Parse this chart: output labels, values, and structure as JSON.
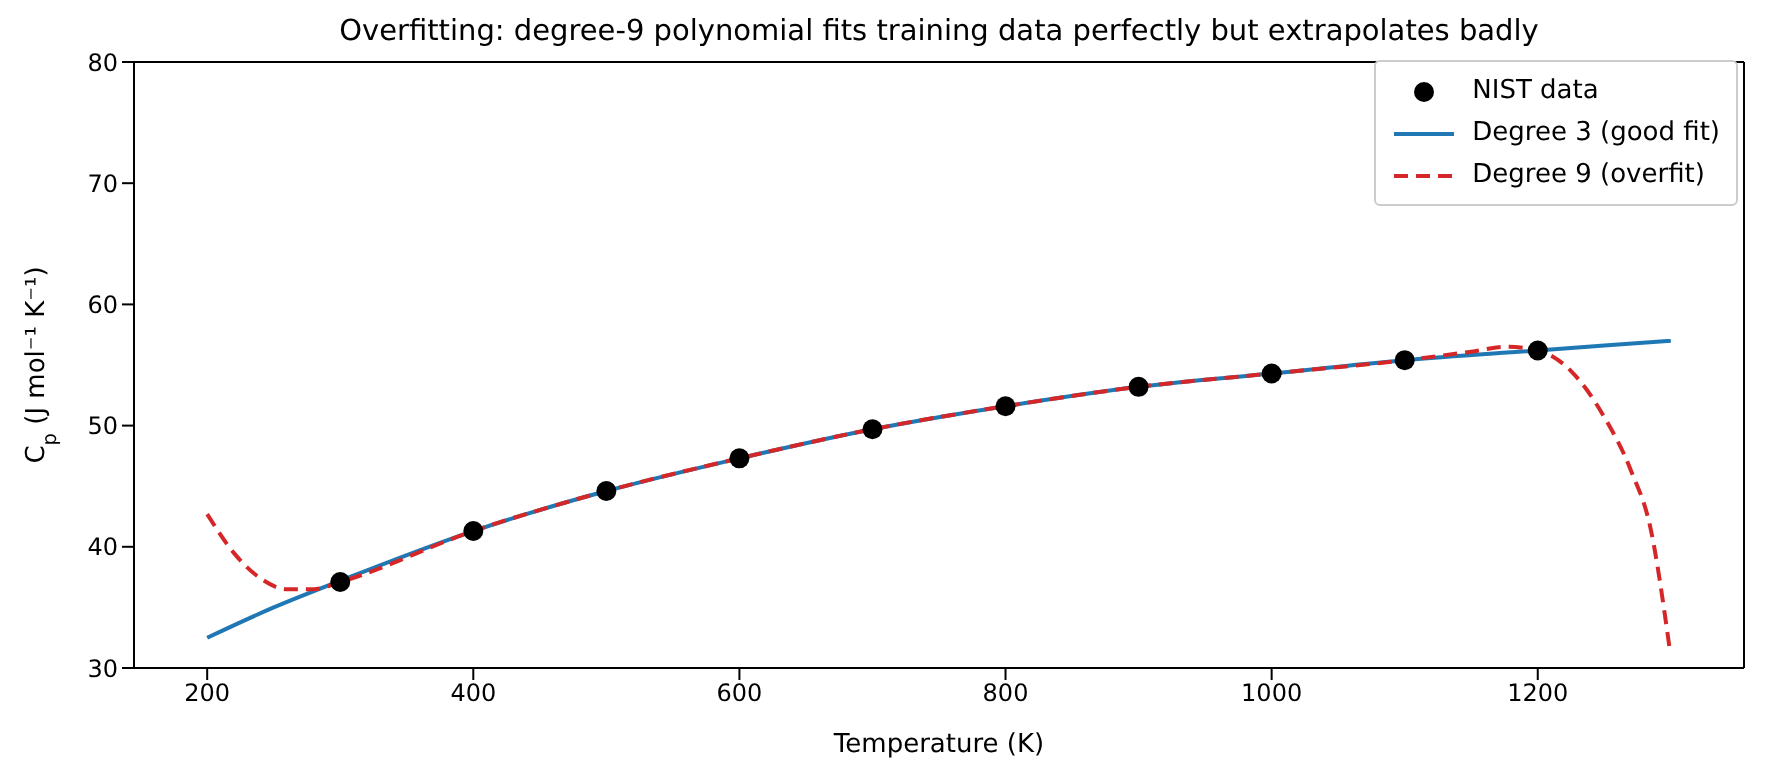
{
  "chart_data": {
    "type": "line",
    "title": "Overfitting: degree-9 polynomial fits training data perfectly but extrapolates badly",
    "xlabel": "Temperature (K)",
    "ylabel": "C$_{p}$ (J mol⁻¹ K⁻¹)",
    "xlim": [
      145,
      1355
    ],
    "xticks": [
      200,
      400,
      600,
      800,
      1000,
      1200
    ],
    "ylim": [
      30,
      80
    ],
    "yticks": [
      30,
      40,
      50,
      60,
      70,
      80
    ],
    "legend": "top right",
    "series": [
      {
        "name": "NIST data",
        "type": "scatter",
        "color": "#000000",
        "marker": "circle",
        "x": [
          300,
          400,
          500,
          600,
          700,
          800,
          900,
          1000,
          1100,
          1200
        ],
        "values": [
          37.1,
          41.3,
          44.6,
          47.3,
          49.7,
          51.6,
          53.2,
          54.3,
          55.4,
          56.2
        ]
      },
      {
        "name": "Degree 3 (good fit)",
        "color": "#1f77b4",
        "line_style": "solid",
        "x": [
          200,
          250,
          300,
          400,
          500,
          600,
          700,
          800,
          900,
          1000,
          1100,
          1200,
          1250,
          1300
        ],
        "values": [
          32.5,
          35.0,
          37.2,
          41.3,
          44.6,
          47.3,
          49.7,
          51.6,
          53.2,
          54.3,
          55.4,
          56.2,
          56.6,
          57.0
        ]
      },
      {
        "name": "Degree 9 (overfit)",
        "color": "#d62728",
        "line_style": "dashed",
        "x": [
          200,
          220,
          240,
          260,
          280,
          300,
          400,
          500,
          600,
          700,
          800,
          900,
          1000,
          1100,
          1150,
          1176,
          1200,
          1225,
          1250,
          1270,
          1285,
          1299
        ],
        "values": [
          42.7,
          39.5,
          37.4,
          36.5,
          36.5,
          37.1,
          41.3,
          44.6,
          47.3,
          49.7,
          51.6,
          53.2,
          54.3,
          55.4,
          56.1,
          56.5,
          56.2,
          54.5,
          50.7,
          46.3,
          41.4,
          31.7
        ]
      }
    ]
  }
}
